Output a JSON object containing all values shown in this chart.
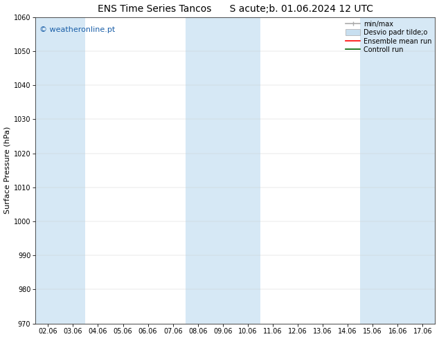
{
  "title1": "ENS Time Series Tancos",
  "title2": "S acute;b. 01.06.2024 12 UTC",
  "ylabel": "Surface Pressure (hPa)",
  "ylim": [
    970,
    1060
  ],
  "yticks": [
    970,
    980,
    990,
    1000,
    1010,
    1020,
    1030,
    1040,
    1050,
    1060
  ],
  "xtick_labels": [
    "02.06",
    "03.06",
    "04.06",
    "05.06",
    "06.06",
    "07.06",
    "08.06",
    "09.06",
    "10.06",
    "11.06",
    "12.06",
    "13.06",
    "14.06",
    "15.06",
    "16.06",
    "17.06"
  ],
  "shade_columns": [
    0,
    1,
    6,
    7,
    8,
    13,
    14,
    15
  ],
  "shade_color": "#d6e8f5",
  "watermark": "© weatheronline.pt",
  "watermark_color": "#1a5fa8",
  "legend_labels": [
    "min/max",
    "Desvio padr tilde;o",
    "Ensemble mean run",
    "Controll run"
  ],
  "legend_line_color": "#aaaaaa",
  "legend_fill_color": "#c8dff0",
  "legend_red": "#ff0000",
  "legend_green": "#006400",
  "background_color": "#ffffff",
  "title_fontsize": 10,
  "tick_fontsize": 7,
  "ylabel_fontsize": 8,
  "watermark_fontsize": 8,
  "legend_fontsize": 7
}
